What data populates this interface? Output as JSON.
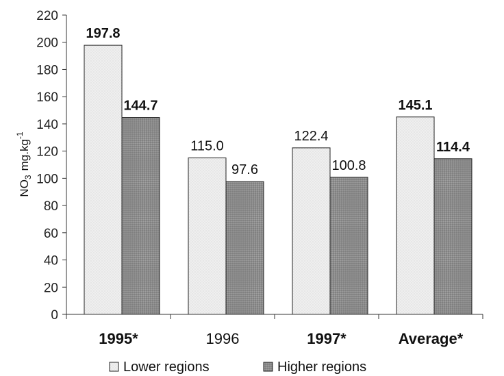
{
  "chart_data": {
    "type": "bar",
    "categories": [
      "1995*",
      "1996",
      "1997*",
      "Average*"
    ],
    "category_bold": [
      true,
      false,
      true,
      true
    ],
    "series": [
      {
        "name": "Lower regions",
        "values": [
          197.8,
          115.0,
          122.4,
          145.1
        ],
        "labels": [
          "197.8",
          "115.0",
          "122.4",
          "145.1"
        ],
        "label_bold": [
          true,
          false,
          false,
          true
        ],
        "color": "#ebebeb",
        "pattern": "dotted"
      },
      {
        "name": "Higher regions",
        "values": [
          144.7,
          97.6,
          100.8,
          114.4
        ],
        "labels": [
          "144.7",
          "97.6",
          "100.8",
          "114.4"
        ],
        "label_bold": [
          true,
          false,
          false,
          true
        ],
        "color": "#8c8c8c",
        "pattern": "dense"
      }
    ],
    "ylim": [
      0,
      220
    ],
    "yticks": [
      0,
      20,
      40,
      60,
      80,
      100,
      120,
      140,
      160,
      180,
      200,
      220
    ],
    "ylabel": {
      "base": "NO",
      "sub": "3",
      "unit": "mg.kg",
      "exp": "-1"
    },
    "legend_position": "bottom",
    "grid": false
  }
}
